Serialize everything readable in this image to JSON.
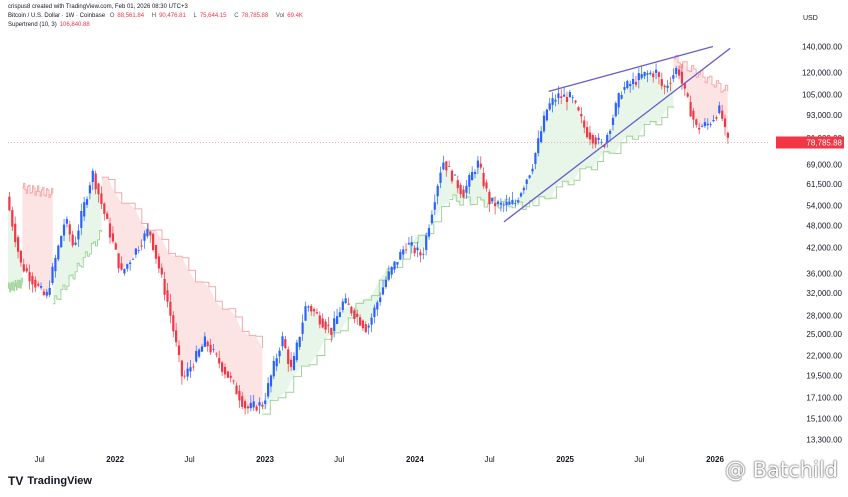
{
  "header": {
    "created_by": "crispus8 created with TradingView.com, Feb 01, 2026 08:30 UTC+3",
    "symbol": "Bitcoin / U.S. Dollar · 1W · Coinbase",
    "o_label": "O",
    "o_value": "88,561.84",
    "h_label": "H",
    "h_value": "90,476.81",
    "l_label": "L",
    "l_value": "75,644.15",
    "c_label": "C",
    "c_value": "78,785.88",
    "vol_label": "Vol",
    "vol_value": "69.4K",
    "indicator": "Supertrend (10, 3)",
    "indicator_value": "106,840.88"
  },
  "footer": {
    "brand": "TradingView",
    "logo_mark": "TV",
    "watermark": "@ Batchild"
  },
  "colors": {
    "up": "#26a69a",
    "up_candle": "#2962ff",
    "down": "#f23645",
    "trend_up_fill": "#e8f6ea",
    "trend_down_fill": "#fde4e4",
    "trend_up_line": "#9ed49a",
    "trend_down_line": "#f5a8a8",
    "channel": "#6b5fc7",
    "last_price_line": "#f23645"
  },
  "chart_data": {
    "type": "candlestick",
    "currency": "USD",
    "y_scale": "log",
    "ylim": [
      12500,
      150000
    ],
    "y_ticks": [
      "140,000.00",
      "120,000.00",
      "105,000.00",
      "93,000.00",
      "81,000.00",
      "69,000.00",
      "61,500.00",
      "54,000.00",
      "48,000.00",
      "42,000.00",
      "36,000.00",
      "32,000.00",
      "28,000.00",
      "25,000.00",
      "22,000.00",
      "19,500.00",
      "17,100.00",
      "15,100.00",
      "13,300.00"
    ],
    "y_tick_values": [
      140000,
      120000,
      105000,
      93000,
      81000,
      69000,
      61500,
      54000,
      48000,
      42000,
      36000,
      32000,
      28000,
      25000,
      22000,
      19500,
      17100,
      15100,
      13300
    ],
    "x_ticks": [
      {
        "label": "Jul",
        "date": "2021-07-01"
      },
      {
        "label": "2022",
        "date": "2022-01-01"
      },
      {
        "label": "Jul",
        "date": "2022-07-01"
      },
      {
        "label": "2023",
        "date": "2023-01-01"
      },
      {
        "label": "Jul",
        "date": "2023-07-01"
      },
      {
        "label": "2024",
        "date": "2024-01-01"
      },
      {
        "label": "Jul",
        "date": "2024-07-01"
      },
      {
        "label": "2025",
        "date": "2025-01-01"
      },
      {
        "label": "Jul",
        "date": "2025-07-01"
      },
      {
        "label": "2026",
        "date": "2026-01-01"
      }
    ],
    "x_range": [
      "2021-04-15",
      "2026-05-15"
    ],
    "last_price": 78785.88,
    "candle_anchors": [
      {
        "date": "2021-04-15",
        "price": 57000
      },
      {
        "date": "2021-05-20",
        "price": 38000
      },
      {
        "date": "2021-07-20",
        "price": 31000
      },
      {
        "date": "2021-09-05",
        "price": 50000
      },
      {
        "date": "2021-09-25",
        "price": 42000
      },
      {
        "date": "2021-11-10",
        "price": 66000
      },
      {
        "date": "2022-01-20",
        "price": 36000
      },
      {
        "date": "2022-03-28",
        "price": 47000
      },
      {
        "date": "2022-05-15",
        "price": 29500
      },
      {
        "date": "2022-06-18",
        "price": 19000
      },
      {
        "date": "2022-08-12",
        "price": 24000
      },
      {
        "date": "2022-10-10",
        "price": 19200
      },
      {
        "date": "2022-11-20",
        "price": 16000
      },
      {
        "date": "2022-12-31",
        "price": 16500
      },
      {
        "date": "2023-02-15",
        "price": 24500
      },
      {
        "date": "2023-03-10",
        "price": 20000
      },
      {
        "date": "2023-04-15",
        "price": 30000
      },
      {
        "date": "2023-06-15",
        "price": 25500
      },
      {
        "date": "2023-07-15",
        "price": 30500
      },
      {
        "date": "2023-09-10",
        "price": 25800
      },
      {
        "date": "2023-10-25",
        "price": 34500
      },
      {
        "date": "2023-12-15",
        "price": 43000
      },
      {
        "date": "2024-01-22",
        "price": 40000
      },
      {
        "date": "2024-03-12",
        "price": 71000
      },
      {
        "date": "2024-05-01",
        "price": 58000
      },
      {
        "date": "2024-06-05",
        "price": 70000
      },
      {
        "date": "2024-07-05",
        "price": 55000
      },
      {
        "date": "2024-08-05",
        "price": 54000
      },
      {
        "date": "2024-09-05",
        "price": 55000
      },
      {
        "date": "2024-10-15",
        "price": 68000
      },
      {
        "date": "2024-11-22",
        "price": 97000
      },
      {
        "date": "2024-12-16",
        "price": 104000
      },
      {
        "date": "2025-01-20",
        "price": 103000
      },
      {
        "date": "2025-02-25",
        "price": 84000
      },
      {
        "date": "2025-04-07",
        "price": 77000
      },
      {
        "date": "2025-05-22",
        "price": 108000
      },
      {
        "date": "2025-07-14",
        "price": 118000
      },
      {
        "date": "2025-08-14",
        "price": 120000
      },
      {
        "date": "2025-09-01",
        "price": 108000
      },
      {
        "date": "2025-10-06",
        "price": 124000
      },
      {
        "date": "2025-10-20",
        "price": 108000
      },
      {
        "date": "2025-11-20",
        "price": 86000
      },
      {
        "date": "2025-12-20",
        "price": 88000
      },
      {
        "date": "2026-01-14",
        "price": 96000
      },
      {
        "date": "2026-01-26",
        "price": 88561
      },
      {
        "date": "2026-02-01",
        "price": 78786
      }
    ],
    "supertrend_segments": [
      {
        "dir": "up",
        "from": "2021-04-15",
        "to": "2021-05-20",
        "level": [
          33000,
          34000
        ]
      },
      {
        "dir": "down",
        "from": "2021-05-20",
        "to": "2021-08-02",
        "level": [
          60000,
          58000
        ]
      },
      {
        "dir": "up",
        "from": "2021-08-02",
        "to": "2021-11-29",
        "level": [
          30000,
          46000
        ]
      },
      {
        "dir": "down",
        "from": "2021-11-29",
        "to": "2022-12-26",
        "level": [
          64000,
          23000
        ]
      },
      {
        "dir": "up",
        "from": "2022-12-26",
        "to": "2024-03-25",
        "level": [
          15500,
          55000
        ]
      },
      {
        "dir": "up",
        "from": "2024-03-25",
        "to": "2024-10-15",
        "level": [
          56000,
          54000
        ]
      },
      {
        "dir": "up",
        "from": "2024-10-15",
        "to": "2025-09-22",
        "level": [
          54000,
          97000
        ]
      },
      {
        "dir": "down",
        "from": "2025-09-22",
        "to": "2026-02-01",
        "level": [
          130000,
          107000
        ]
      }
    ],
    "trendlines": [
      {
        "from": {
          "date": "2024-08-05",
          "price": 49000
        },
        "to": {
          "date": "2026-02-07",
          "price": 138500
        }
      },
      {
        "from": {
          "date": "2024-11-22",
          "price": 107000
        },
        "to": {
          "date": "2025-12-27",
          "price": 140000
        }
      }
    ]
  }
}
